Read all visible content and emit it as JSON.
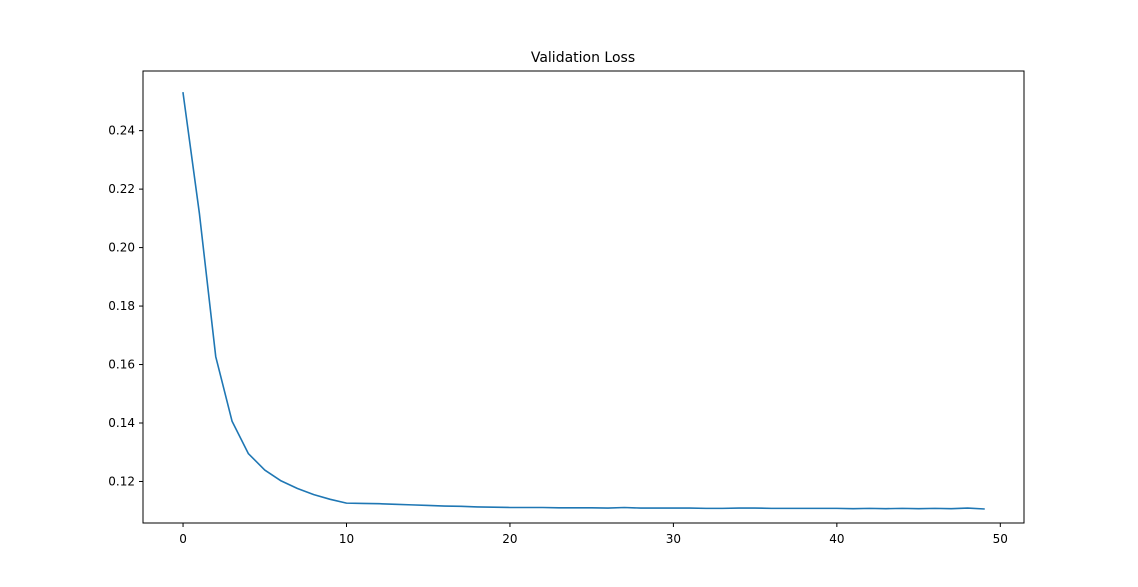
{
  "chart_data": {
    "type": "line",
    "title": "Validation Loss",
    "xlabel": "",
    "ylabel": "",
    "xlim": [
      -2.45,
      51.45
    ],
    "ylim": [
      0.1058,
      0.2604
    ],
    "xticks": [
      0,
      10,
      20,
      30,
      40,
      50
    ],
    "xtick_labels": [
      "0",
      "10",
      "20",
      "30",
      "40",
      "50"
    ],
    "yticks": [
      0.12,
      0.14,
      0.16,
      0.18,
      0.2,
      0.22,
      0.24
    ],
    "ytick_labels": [
      "0.12",
      "0.14",
      "0.16",
      "0.18",
      "0.20",
      "0.22",
      "0.24"
    ],
    "grid": false,
    "series": [
      {
        "color": "#1f77b4",
        "x": [
          0,
          1,
          2,
          3,
          4,
          5,
          6,
          7,
          8,
          9,
          10,
          11,
          12,
          13,
          14,
          15,
          16,
          17,
          18,
          19,
          20,
          21,
          22,
          23,
          24,
          25,
          26,
          27,
          28,
          29,
          30,
          31,
          32,
          33,
          34,
          35,
          36,
          37,
          38,
          39,
          40,
          41,
          42,
          43,
          44,
          45,
          46,
          47,
          48,
          49
        ],
        "y": [
          0.2529,
          0.2117,
          0.1627,
          0.1406,
          0.1295,
          0.1239,
          0.1202,
          0.1176,
          0.1155,
          0.1139,
          0.1126,
          0.1125,
          0.1124,
          0.1122,
          0.112,
          0.1118,
          0.1116,
          0.1115,
          0.1113,
          0.1112,
          0.1111,
          0.1111,
          0.1111,
          0.111,
          0.111,
          0.111,
          0.1109,
          0.1111,
          0.1109,
          0.1109,
          0.1109,
          0.1109,
          0.1108,
          0.1108,
          0.1109,
          0.1109,
          0.1108,
          0.1108,
          0.1108,
          0.1108,
          0.1108,
          0.1107,
          0.1108,
          0.1107,
          0.1108,
          0.1107,
          0.1108,
          0.1107,
          0.1109,
          0.1106
        ]
      }
    ]
  }
}
